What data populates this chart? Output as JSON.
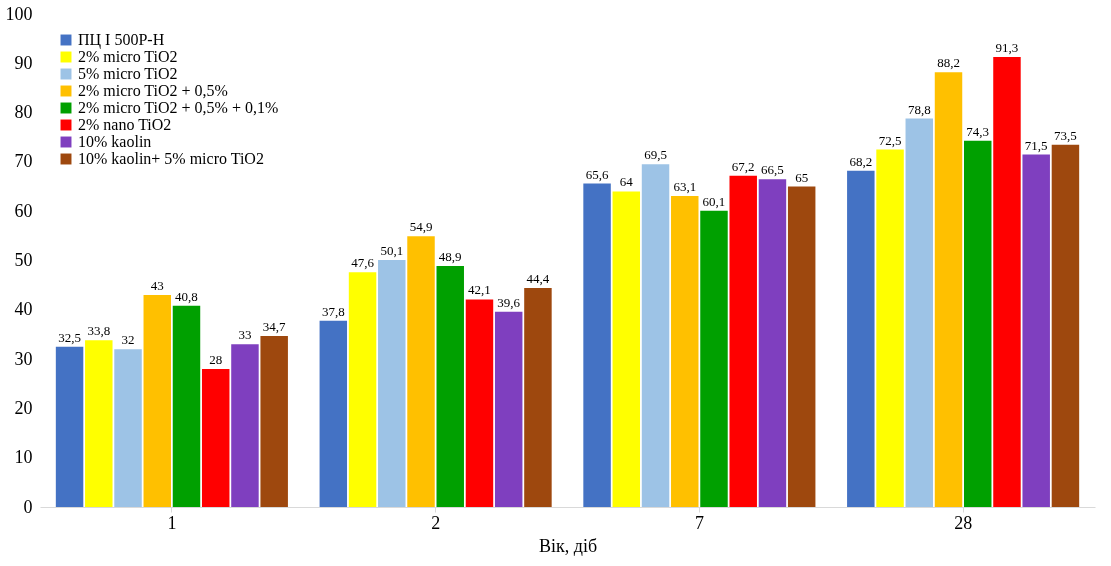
{
  "chart_data": {
    "type": "bar",
    "xlabel": "Вік, діб",
    "categories": [
      "1",
      "2",
      "7",
      "28"
    ],
    "series": [
      {
        "name": "ПЦ I 500Р-Н",
        "color": "#4472c4",
        "values": [
          32.5,
          37.8,
          65.6,
          68.2
        ],
        "value_labels": [
          "32,5",
          "37,8",
          "65,6",
          "68,2"
        ]
      },
      {
        "name": "2% micro TiO2",
        "color": "#ffff00",
        "values": [
          33.8,
          47.6,
          64,
          72.5
        ],
        "value_labels": [
          "33,8",
          "47,6",
          "64",
          "72,5"
        ]
      },
      {
        "name": "5% micro TiO2",
        "color": "#9dc3e6",
        "values": [
          32,
          50.1,
          69.5,
          78.8
        ],
        "value_labels": [
          "32",
          "50,1",
          "69,5",
          "78,8"
        ]
      },
      {
        "name": "2% micro TiO2 + 0,5%",
        "color": "#ffc000",
        "values": [
          43,
          54.9,
          63.1,
          88.2
        ],
        "value_labels": [
          "43",
          "54,9",
          "63,1",
          "88,2"
        ]
      },
      {
        "name": "2% micro TiO2 + 0,5% + 0,1%",
        "color": "#00a000",
        "values": [
          40.8,
          48.9,
          60.1,
          74.3
        ],
        "value_labels": [
          "40,8",
          "48,9",
          "60,1",
          "74,3"
        ]
      },
      {
        "name": "2% nano TiO2",
        "color": "#ff0000",
        "values": [
          28,
          42.1,
          67.2,
          91.3
        ],
        "value_labels": [
          "28",
          "42,1",
          "67,2",
          "91,3"
        ]
      },
      {
        "name": "10% kaolin",
        "color": "#7f3fbf",
        "values": [
          33,
          39.6,
          66.5,
          71.5
        ],
        "value_labels": [
          "33",
          "39,6",
          "66,5",
          "71,5"
        ]
      },
      {
        "name": "10% kaolin+ 5% micro TiO2",
        "color": "#9e480e",
        "values": [
          34.7,
          44.4,
          65,
          73.5
        ],
        "value_labels": [
          "34,7",
          "44,4",
          "65",
          "73,5"
        ]
      }
    ],
    "ylim": [
      0,
      100
    ],
    "yticks": [
      0,
      10,
      20,
      30,
      40,
      50,
      60,
      70,
      80,
      90,
      100
    ],
    "grid": false,
    "legend": "top left"
  }
}
